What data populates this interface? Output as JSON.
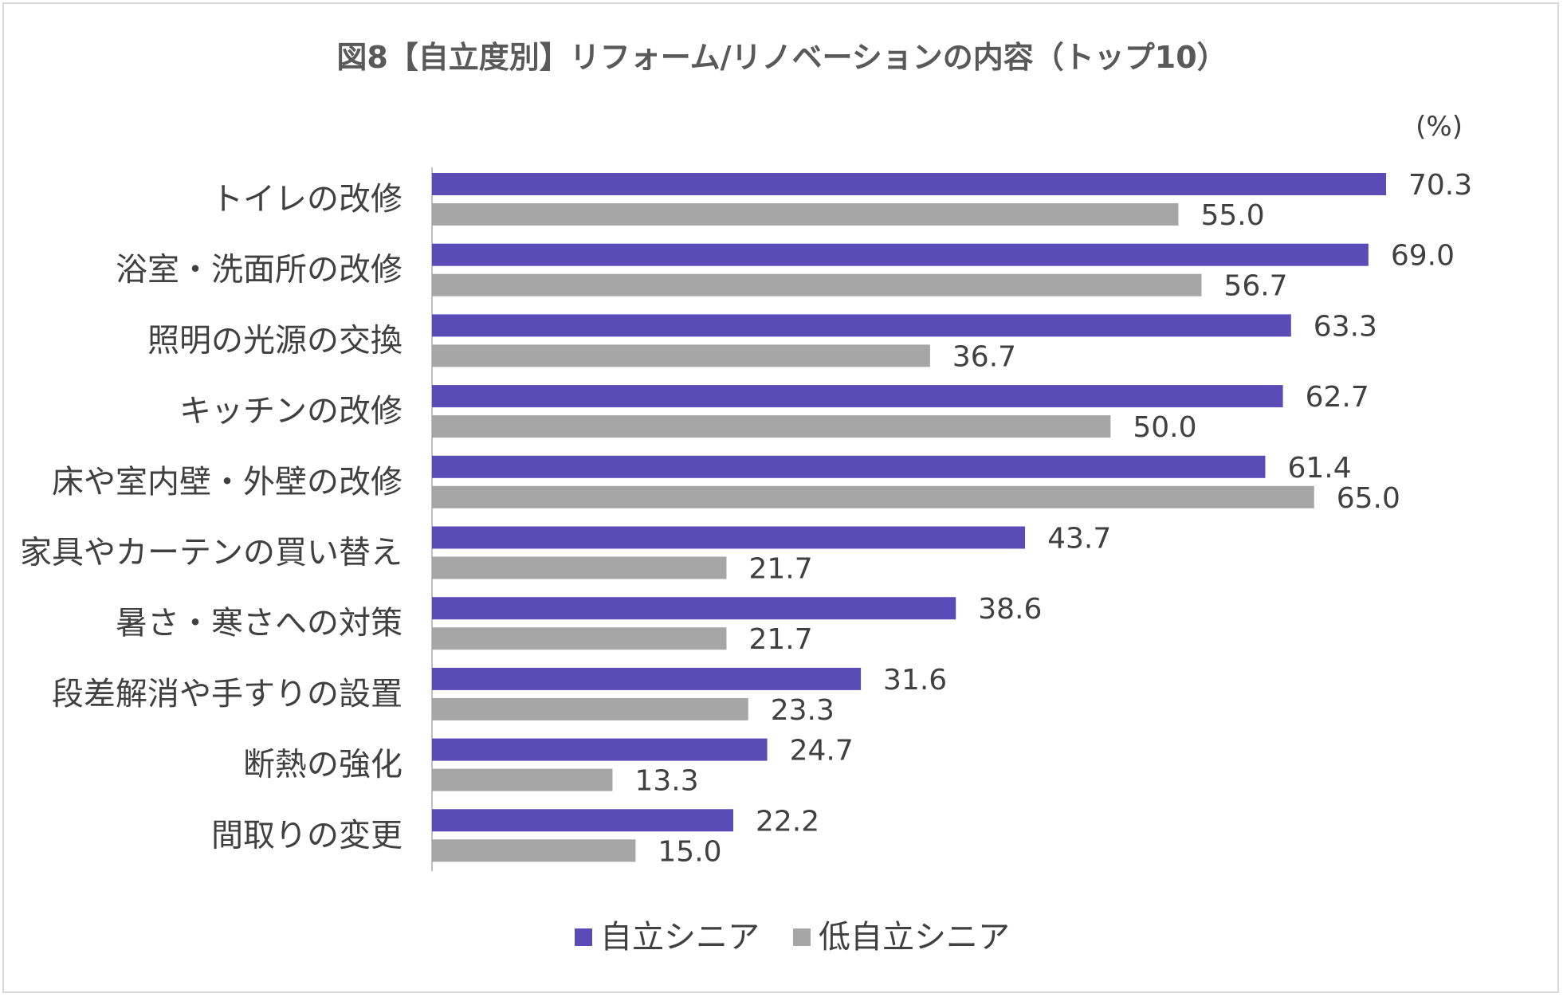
{
  "chart_data": {
    "type": "bar",
    "orientation": "horizontal",
    "title": "図8【自立度別】リフォーム/リノベーションの内容（トップ10）",
    "unit_label": "(%)",
    "categories": [
      "トイレの改修",
      "浴室・洗面所の改修",
      "照明の光源の交換",
      "キッチンの改修",
      "床や室内壁・外壁の改修",
      "家具やカーテンの買い替え",
      "暑さ・寒さへの対策",
      "段差解消や手すりの設置",
      "断熱の強化",
      "間取りの変更"
    ],
    "series": [
      {
        "name": "自立シニア",
        "color": "#5b4bb7",
        "values": [
          70.3,
          69.0,
          63.3,
          62.7,
          61.4,
          43.7,
          38.6,
          31.6,
          24.7,
          22.2
        ],
        "labels": [
          "70.3",
          "69.0",
          "63.3",
          "62.7",
          "61.4",
          "43.7",
          "38.6",
          "31.6",
          "24.7",
          "22.2"
        ]
      },
      {
        "name": "低自立シニア",
        "color": "#a6a6a6",
        "values": [
          55.0,
          56.7,
          36.7,
          50.0,
          65.0,
          21.7,
          21.7,
          23.3,
          13.3,
          15.0
        ],
        "labels": [
          "55.0",
          "56.7",
          "36.7",
          "50.0",
          "65.0",
          "21.7",
          "21.7",
          "23.3",
          "13.3",
          "15.0"
        ]
      }
    ],
    "xlim": [
      0,
      80
    ],
    "grid": false,
    "legend": "bottom-center"
  }
}
